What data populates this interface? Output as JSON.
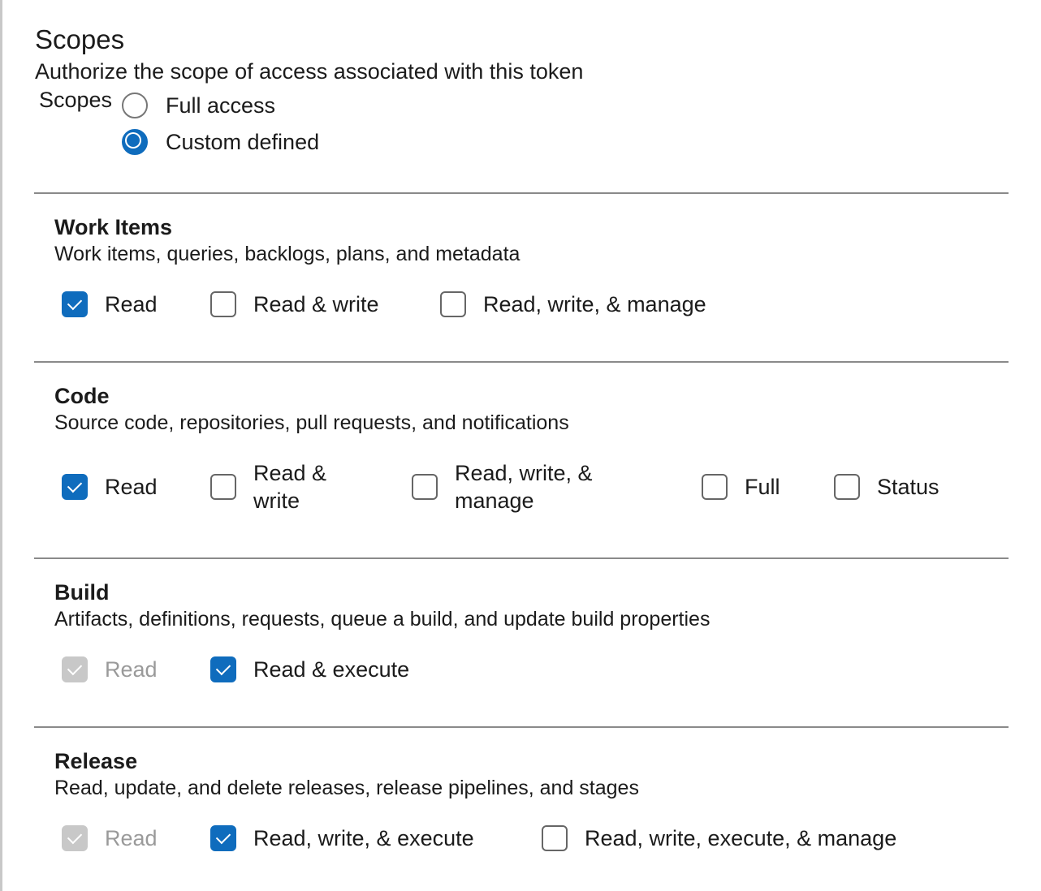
{
  "header": {
    "title": "Scopes",
    "subtitle": "Authorize the scope of access associated with this token",
    "scopes_label": "Scopes"
  },
  "scope_options": [
    {
      "label": "Full access",
      "selected": false
    },
    {
      "label": "Custom defined",
      "selected": true
    }
  ],
  "accent_color": "#0f6cbd",
  "sections": [
    {
      "title": "Work Items",
      "description": "Work items, queries, backlogs, plans, and metadata",
      "options": [
        {
          "label": "Read",
          "checked": true,
          "disabled": false
        },
        {
          "label": "Read & write",
          "checked": false,
          "disabled": false
        },
        {
          "label": "Read, write, & manage",
          "checked": false,
          "disabled": false
        }
      ]
    },
    {
      "title": "Code",
      "description": "Source code, repositories, pull requests, and notifications",
      "options": [
        {
          "label": "Read",
          "checked": true,
          "disabled": false
        },
        {
          "label": "Read & write",
          "checked": false,
          "disabled": false
        },
        {
          "label": "Read, write, & manage",
          "checked": false,
          "disabled": false
        },
        {
          "label": "Full",
          "checked": false,
          "disabled": false
        },
        {
          "label": "Status",
          "checked": false,
          "disabled": false
        }
      ]
    },
    {
      "title": "Build",
      "description": "Artifacts, definitions, requests, queue a build, and update build properties",
      "options": [
        {
          "label": "Read",
          "checked": true,
          "disabled": true
        },
        {
          "label": "Read & execute",
          "checked": true,
          "disabled": false
        }
      ]
    },
    {
      "title": "Release",
      "description": "Read, update, and delete releases, release pipelines, and stages",
      "options": [
        {
          "label": "Read",
          "checked": true,
          "disabled": true
        },
        {
          "label": "Read, write, & execute",
          "checked": true,
          "disabled": false
        },
        {
          "label": "Read, write, execute, & manage",
          "checked": false,
          "disabled": false
        }
      ]
    }
  ]
}
